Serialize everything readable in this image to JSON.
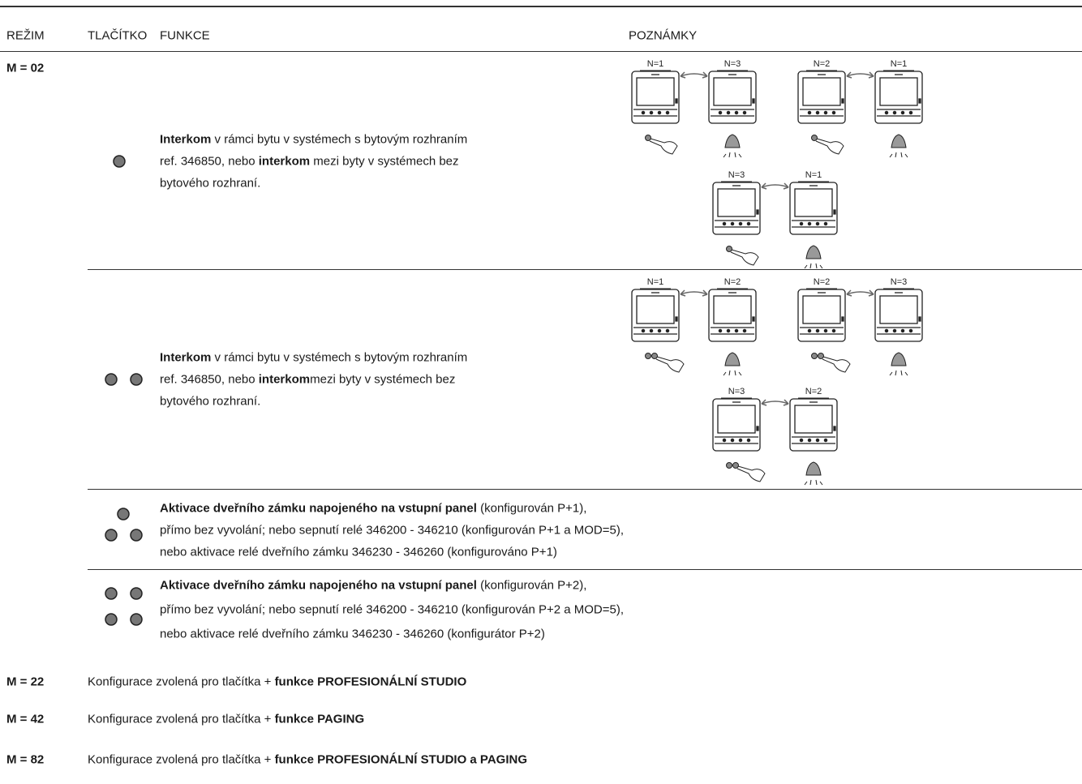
{
  "header": {
    "mode": "REŽIM",
    "button": "TLAČÍTKO",
    "function": "FUNKCE",
    "notes": "POZNÁMKY"
  },
  "sections": [
    {
      "mode": "M = 02",
      "rows": [
        {
          "lines": [
            [
              {
                "text": "Interkom",
                "bold": true
              },
              {
                "text": " v rámci bytu v systémech s bytovým rozhraním"
              }
            ],
            [
              {
                "text": "ref. 346850, nebo "
              },
              {
                "text": "interkom",
                "bold": true
              },
              {
                "text": " mezi byty v systémech bez"
              }
            ],
            [
              {
                "text": "bytového rozhraní."
              }
            ]
          ],
          "diagram": [
            [
              "N=1",
              "N=3"
            ],
            [
              "N=2",
              "N=1"
            ],
            [
              "N=3",
              "N=1"
            ]
          ]
        },
        {
          "lines": [
            [
              {
                "text": "Interkom",
                "bold": true
              },
              {
                "text": " v rámci bytu v systémech s bytovým rozhraním"
              }
            ],
            [
              {
                "text": "ref. 346850, nebo "
              },
              {
                "text": "interkom",
                "bold": true
              },
              {
                "text": "mezi byty v systémech bez"
              }
            ],
            [
              {
                "text": "bytového rozhraní."
              }
            ]
          ],
          "diagram": [
            [
              "N=1",
              "N=2"
            ],
            [
              "N=2",
              "N=3"
            ],
            [
              "N=3",
              "N=2"
            ]
          ]
        },
        {
          "lines": [
            [
              {
                "text": "Aktivace dveřního zámku napojeného na vstupní panel",
                "bold": true
              },
              {
                "text": " (konfigurován P+1),"
              }
            ],
            [
              {
                "text": "přímo bez vyvolání; nebo sepnutí relé 346200 - 346210 (konfigurován P+1 a MOD=5),"
              }
            ],
            [
              {
                "text": "nebo aktivace relé dveřního zámku 346230 - 346260 (konfigurováno P+1)"
              }
            ]
          ]
        },
        {
          "lines": [
            [
              {
                "text": "Aktivace dveřního zámku napojeného na vstupní panel",
                "bold": true
              },
              {
                "text": " (konfigurován P+2),"
              }
            ],
            [
              {
                "text": "přímo bez vyvolání; nebo sepnutí relé 346200 - 346210 (konfigurován P+2 a MOD=5),"
              }
            ],
            [
              {
                "text": "nebo aktivace relé dveřního zámku 346230 - 346260 (konfigurátor P+2)"
              }
            ]
          ]
        }
      ]
    },
    {
      "mode": "M = 22",
      "lines": [
        [
          {
            "text": "Konfigurace zvolená pro tlačítka + "
          },
          {
            "text": "funkce PROFESIONÁLNÍ STUDIO",
            "bold": true
          }
        ]
      ]
    },
    {
      "mode": "M = 42",
      "lines": [
        [
          {
            "text": "Konfigurace zvolená pro tlačítka + "
          },
          {
            "text": "funkce PAGING",
            "bold": true
          }
        ]
      ]
    },
    {
      "mode": "M = 82",
      "lines": [
        [
          {
            "text": "Konfigurace zvolená pro tlačítka + "
          },
          {
            "text": "funkce PROFESIONÁLNÍ STUDIO a PAGING",
            "bold": true
          }
        ]
      ]
    }
  ]
}
